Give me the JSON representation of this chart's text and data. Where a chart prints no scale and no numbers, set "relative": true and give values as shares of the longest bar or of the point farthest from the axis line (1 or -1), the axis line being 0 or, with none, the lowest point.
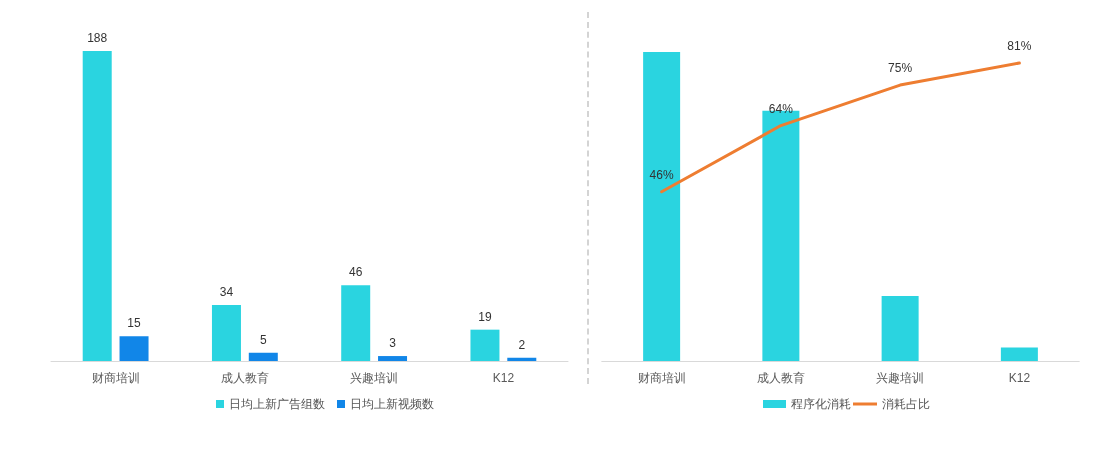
{
  "chart_data": [
    {
      "type": "bar",
      "categories": [
        "财商培训",
        "成人教育",
        "兴趣培训",
        "K12"
      ],
      "series": [
        {
          "name": "日均上新广告组数",
          "color": "#2ad4e0",
          "values": [
            188,
            34,
            46,
            19
          ]
        },
        {
          "name": "日均上新视频数",
          "color": "#1186e8",
          "values": [
            15,
            5,
            3,
            2
          ]
        }
      ],
      "data_labels": true,
      "legend": "bottom",
      "tick_labels": "x"
    },
    {
      "type": "bar",
      "categories": [
        "财商培训",
        "成人教育",
        "兴趣培训",
        "K12"
      ],
      "relative": true,
      "series": [
        {
          "name": "程序化消耗",
          "color": "#2ad4e0",
          "values": [
            1,
            0.81,
            0.21,
            0.044
          ]
        }
      ],
      "legend": "bottom"
    },
    {
      "type": "line",
      "categories": [
        null,
        null,
        null,
        null
      ],
      "series": [
        {
          "name": "消耗占比",
          "color": "#ee7d31",
          "values": [
            46,
            64,
            75,
            81
          ],
          "value_labels": [
            "46%",
            "64%",
            "75%",
            "81%"
          ]
        }
      ],
      "legend": "bottom",
      "tick_labels": "x",
      "marker": "none"
    }
  ]
}
